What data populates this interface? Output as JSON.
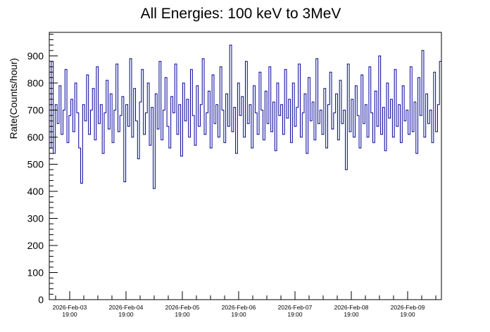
{
  "chart_data": {
    "type": "bar",
    "style": "histogram-line",
    "title": "All Energies:  100 keV to 3MeV",
    "xlabel": "",
    "ylabel": "Rate(Counts/hour)",
    "ylim": [
      0,
      987
    ],
    "y_ticks": [
      0,
      100,
      200,
      300,
      400,
      500,
      600,
      700,
      800,
      900
    ],
    "x_range_days": [
      -0.3625,
      6.6
    ],
    "x_ticks": [
      {
        "day": 0,
        "date": "2026-Feb-03",
        "time": "19:00"
      },
      {
        "day": 1,
        "date": "2026-Feb-04",
        "time": "19:00"
      },
      {
        "day": 2,
        "date": "2026-Feb-05",
        "time": "19:00"
      },
      {
        "day": 3,
        "date": "2026-Feb-06",
        "time": "19:00"
      },
      {
        "day": 4,
        "date": "2026-Feb-07",
        "time": "19:00"
      },
      {
        "day": 5,
        "date": "2026-Feb-08",
        "time": "19:00"
      },
      {
        "day": 6,
        "date": "2026-Feb-09",
        "time": "19:00"
      }
    ],
    "line_color": "#000099",
    "grid": false,
    "values": [
      560,
      880,
      540,
      720,
      650,
      790,
      610,
      700,
      850,
      580,
      680,
      740,
      620,
      800,
      690,
      560,
      430,
      720,
      660,
      830,
      610,
      700,
      780,
      590,
      860,
      650,
      720,
      540,
      690,
      810,
      630,
      760,
      580,
      700,
      870,
      620,
      680,
      750,
      435,
      720,
      640,
      890,
      600,
      780,
      660,
      520,
      730,
      850,
      610,
      690,
      800,
      570,
      710,
      410,
      760,
      630,
      880,
      590,
      700,
      820,
      640,
      560,
      750,
      690,
      870,
      610,
      720,
      530,
      800,
      660,
      740,
      600,
      850,
      680,
      570,
      790,
      640,
      720,
      890,
      610,
      690,
      770,
      560,
      830,
      650,
      720,
      600,
      860,
      700,
      580,
      760,
      640,
      940,
      620,
      710,
      540,
      800,
      680,
      750,
      600,
      880,
      650,
      720,
      560,
      790,
      690,
      610,
      840,
      700,
      590,
      770,
      650,
      860,
      620,
      730,
      550,
      800,
      680,
      720,
      610,
      850,
      670,
      740,
      580,
      800,
      640,
      710,
      870,
      600,
      690,
      760,
      540,
      820,
      660,
      730,
      590,
      890,
      650,
      700,
      610,
      780,
      560,
      720,
      840,
      630,
      690,
      760,
      590,
      810,
      650,
      700,
      480,
      870,
      620,
      740,
      600,
      790,
      680,
      560,
      830,
      650,
      720,
      600,
      860,
      690,
      580,
      770,
      640,
      900,
      610,
      710,
      550,
      800,
      670,
      740,
      600,
      850,
      640,
      720,
      580,
      790,
      660,
      700,
      610,
      860,
      620,
      730,
      540,
      820,
      680,
      920,
      600,
      760,
      650,
      700,
      580,
      840,
      620,
      720,
      880
    ]
  }
}
